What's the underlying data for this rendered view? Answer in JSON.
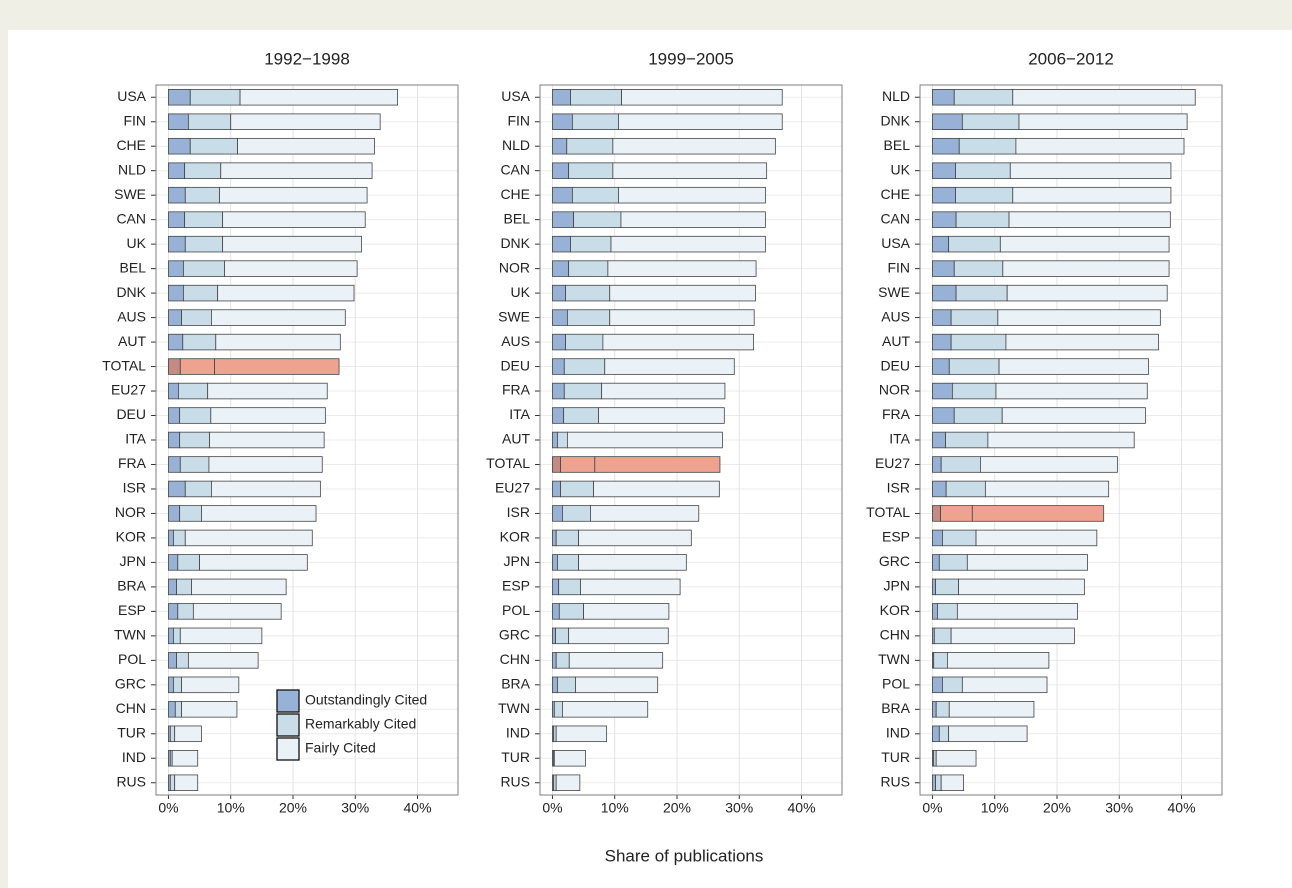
{
  "x_label": "Share of publications",
  "chart_data": [
    {
      "type": "bar",
      "orientation": "horizontal",
      "title": "1992−1998",
      "categories": [
        "USA",
        "FIN",
        "CHE",
        "NLD",
        "SWE",
        "CAN",
        "UK",
        "BEL",
        "DNK",
        "AUS",
        "AUT",
        "TOTAL",
        "EU27",
        "DEU",
        "ITA",
        "FRA",
        "ISR",
        "NOR",
        "KOR",
        "JPN",
        "BRA",
        "ESP",
        "TWN",
        "POL",
        "GRC",
        "CHN",
        "TUR",
        "IND",
        "RUS"
      ],
      "series": [
        {
          "name": "Outstandingly Cited",
          "color": "#98b1d6",
          "highlight_color": "#c48a84",
          "values": [
            3.5,
            3.2,
            3.5,
            2.6,
            2.7,
            2.6,
            2.7,
            2.4,
            2.4,
            2.1,
            2.3,
            1.9,
            1.6,
            1.8,
            1.8,
            1.9,
            2.7,
            1.8,
            0.8,
            1.5,
            1.3,
            1.5,
            0.8,
            1.3,
            0.8,
            1.1,
            0.3,
            0.3,
            0.3
          ]
        },
        {
          "name": "Remarkably Cited",
          "color": "#c9dde9",
          "highlight_color": "#eda390",
          "values": [
            8.0,
            6.8,
            7.6,
            5.8,
            5.5,
            6.1,
            6.0,
            6.6,
            5.5,
            4.8,
            5.3,
            5.5,
            4.7,
            5.0,
            4.8,
            4.6,
            4.2,
            3.5,
            1.9,
            3.5,
            2.4,
            2.5,
            1.1,
            1.9,
            1.3,
            1.0,
            0.7,
            0.3,
            0.7
          ]
        },
        {
          "name": "Fairly Cited",
          "color": "#eaf2f8",
          "highlight_color": "#eda390",
          "values": [
            25.3,
            24.0,
            22.0,
            24.3,
            23.7,
            22.9,
            22.3,
            21.3,
            21.9,
            21.5,
            20.0,
            20.0,
            19.2,
            18.4,
            18.4,
            18.2,
            17.5,
            18.4,
            20.4,
            17.3,
            15.2,
            14.1,
            13.1,
            11.2,
            9.2,
            8.9,
            4.3,
            4.1,
            3.7
          ]
        }
      ],
      "highlight": "TOTAL",
      "xlim": [
        -2,
        46.5
      ],
      "xticks": [
        {
          "value": 0,
          "label": "0%"
        },
        {
          "value": 10,
          "label": "10%"
        },
        {
          "value": 20,
          "label": "20%"
        },
        {
          "value": 30,
          "label": "30%"
        },
        {
          "value": 40,
          "label": "40%"
        }
      ],
      "grid": true,
      "legend": "bottom right"
    },
    {
      "type": "bar",
      "orientation": "horizontal",
      "title": "1999−2005",
      "categories": [
        "USA",
        "FIN",
        "NLD",
        "CAN",
        "CHE",
        "BEL",
        "DNK",
        "NOR",
        "UK",
        "SWE",
        "AUS",
        "DEU",
        "FRA",
        "ITA",
        "AUT",
        "TOTAL",
        "EU27",
        "ISR",
        "KOR",
        "JPN",
        "ESP",
        "POL",
        "GRC",
        "CHN",
        "BRA",
        "TWN",
        "IND",
        "TUR",
        "RUS"
      ],
      "series": [
        {
          "color": "#98b1d6",
          "highlight_color": "#c48a84",
          "values": [
            2.9,
            3.2,
            2.3,
            2.6,
            3.2,
            3.4,
            2.9,
            2.6,
            2.1,
            2.4,
            2.1,
            1.9,
            1.9,
            1.8,
            0.8,
            1.3,
            1.3,
            1.6,
            0.6,
            0.8,
            1.0,
            1.1,
            0.5,
            0.6,
            0.8,
            0.3,
            0.2,
            0.2,
            0.2
          ]
        },
        {
          "color": "#c9dde9",
          "highlight_color": "#eda390",
          "values": [
            8.2,
            7.4,
            7.4,
            7.1,
            7.4,
            7.6,
            6.5,
            6.3,
            7.1,
            6.8,
            6.0,
            6.5,
            6.0,
            5.6,
            1.6,
            5.5,
            5.3,
            4.5,
            3.6,
            3.4,
            3.5,
            3.9,
            2.1,
            2.1,
            2.9,
            1.3,
            0.4,
            0.1,
            0.4
          ]
        },
        {
          "color": "#eaf2f8",
          "highlight_color": "#eda390",
          "values": [
            25.8,
            26.3,
            26.1,
            24.7,
            23.6,
            23.2,
            24.8,
            23.8,
            23.4,
            23.2,
            24.2,
            20.8,
            19.8,
            20.2,
            24.9,
            20.1,
            20.2,
            17.4,
            18.1,
            17.3,
            16.0,
            13.7,
            16.0,
            15.0,
            13.2,
            13.7,
            8.1,
            5.0,
            3.8
          ]
        }
      ],
      "highlight": "TOTAL",
      "xlim": [
        -2,
        46.5
      ],
      "xticks": [
        {
          "value": 0,
          "label": "0%"
        },
        {
          "value": 10,
          "label": "10%"
        },
        {
          "value": 20,
          "label": "20%"
        },
        {
          "value": 30,
          "label": "30%"
        },
        {
          "value": 40,
          "label": "40%"
        }
      ],
      "grid": true
    },
    {
      "type": "bar",
      "orientation": "horizontal",
      "title": "2006−2012",
      "categories": [
        "NLD",
        "DNK",
        "BEL",
        "UK",
        "CHE",
        "CAN",
        "USA",
        "FIN",
        "SWE",
        "AUS",
        "AUT",
        "DEU",
        "NOR",
        "FRA",
        "ITA",
        "EU27",
        "ISR",
        "TOTAL",
        "ESP",
        "GRC",
        "JPN",
        "KOR",
        "CHN",
        "TWN",
        "POL",
        "BRA",
        "IND",
        "TUR",
        "RUS"
      ],
      "series": [
        {
          "color": "#98b1d6",
          "highlight_color": "#c48a84",
          "values": [
            3.5,
            4.8,
            4.3,
            3.7,
            3.7,
            3.8,
            2.6,
            3.5,
            3.8,
            3.0,
            3.0,
            2.7,
            3.2,
            3.5,
            2.1,
            1.4,
            2.2,
            1.3,
            1.6,
            1.1,
            0.5,
            0.8,
            0.3,
            0.2,
            1.6,
            0.6,
            1.1,
            0.2,
            0.5
          ]
        },
        {
          "color": "#c9dde9",
          "highlight_color": "#eda390",
          "values": [
            9.4,
            9.1,
            9.1,
            8.8,
            9.2,
            8.5,
            8.3,
            7.8,
            8.2,
            7.5,
            8.8,
            8.0,
            7.0,
            7.7,
            6.8,
            6.3,
            6.3,
            5.1,
            5.4,
            4.5,
            3.7,
            3.2,
            2.7,
            2.2,
            3.2,
            2.1,
            1.5,
            0.4,
            0.9
          ]
        },
        {
          "color": "#eaf2f8",
          "highlight_color": "#eda390",
          "values": [
            29.3,
            27.0,
            27.0,
            25.8,
            25.4,
            25.9,
            27.1,
            26.7,
            25.7,
            26.1,
            24.5,
            24.0,
            24.3,
            23.0,
            23.5,
            22.0,
            19.8,
            21.1,
            19.4,
            19.3,
            20.2,
            19.3,
            19.8,
            16.3,
            13.6,
            13.6,
            12.6,
            6.4,
            3.6
          ]
        }
      ],
      "highlight": "TOTAL",
      "xlim": [
        -2,
        46.5
      ],
      "xticks": [
        {
          "value": 0,
          "label": "0%"
        },
        {
          "value": 10,
          "label": "10%"
        },
        {
          "value": 20,
          "label": "20%"
        },
        {
          "value": 30,
          "label": "30%"
        },
        {
          "value": 40,
          "label": "40%"
        }
      ],
      "grid": true
    }
  ]
}
